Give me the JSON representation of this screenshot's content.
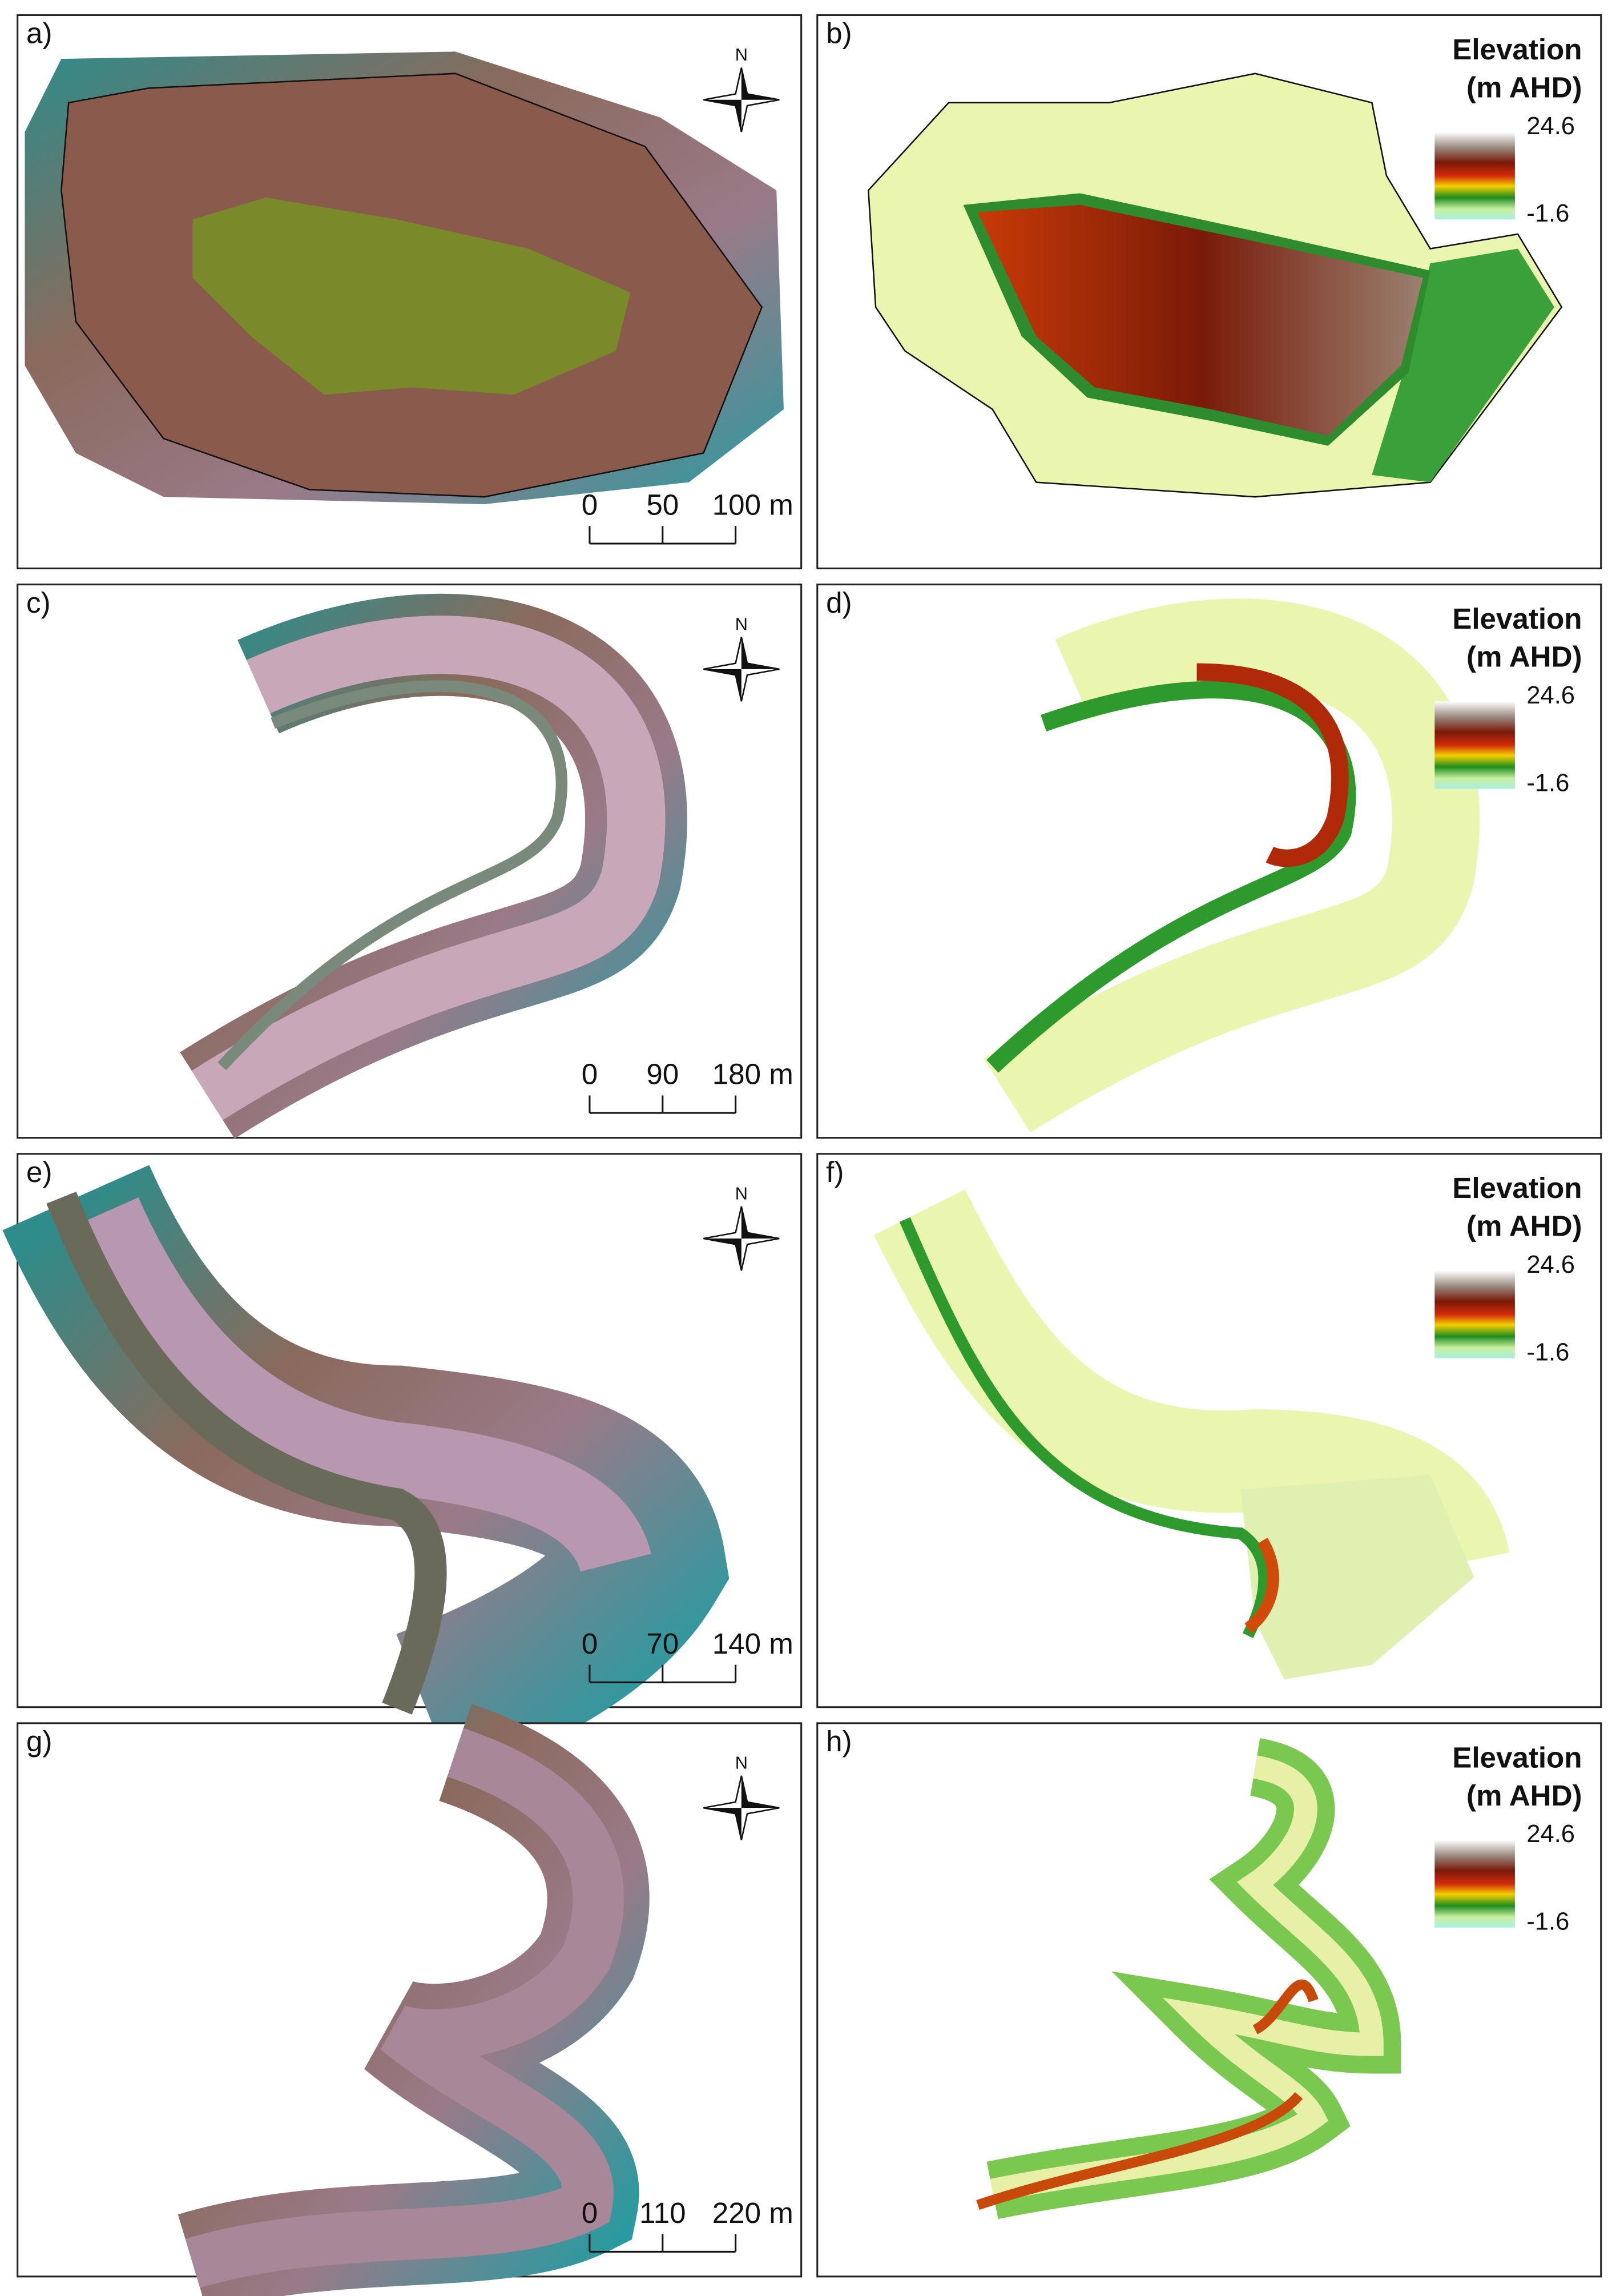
{
  "panels": [
    {
      "label": "a)",
      "north": "N",
      "scale": [
        "0",
        "50",
        "100 m"
      ]
    },
    {
      "label": "b)",
      "legend": {
        "title": [
          "Elevation",
          "(m AHD)"
        ],
        "max": "24.6",
        "min": "-1.6"
      }
    },
    {
      "label": "c)",
      "north": "N",
      "scale": [
        "0",
        "90",
        "180 m"
      ]
    },
    {
      "label": "d)",
      "legend": {
        "title": [
          "Elevation",
          "(m AHD)"
        ],
        "max": "24.6",
        "min": "-1.6"
      }
    },
    {
      "label": "e)",
      "north": "N",
      "scale": [
        "0",
        "70",
        "140 m"
      ]
    },
    {
      "label": "f)",
      "legend": {
        "title": [
          "Elevation",
          "(m AHD)"
        ],
        "max": "24.6",
        "min": "-1.6"
      }
    },
    {
      "label": "g)",
      "north": "N",
      "scale": [
        "0",
        "110",
        "220 m"
      ]
    },
    {
      "label": "h)",
      "legend": {
        "title": [
          "Elevation",
          "(m AHD)"
        ],
        "max": "24.6",
        "min": "-1.6"
      }
    }
  ]
}
